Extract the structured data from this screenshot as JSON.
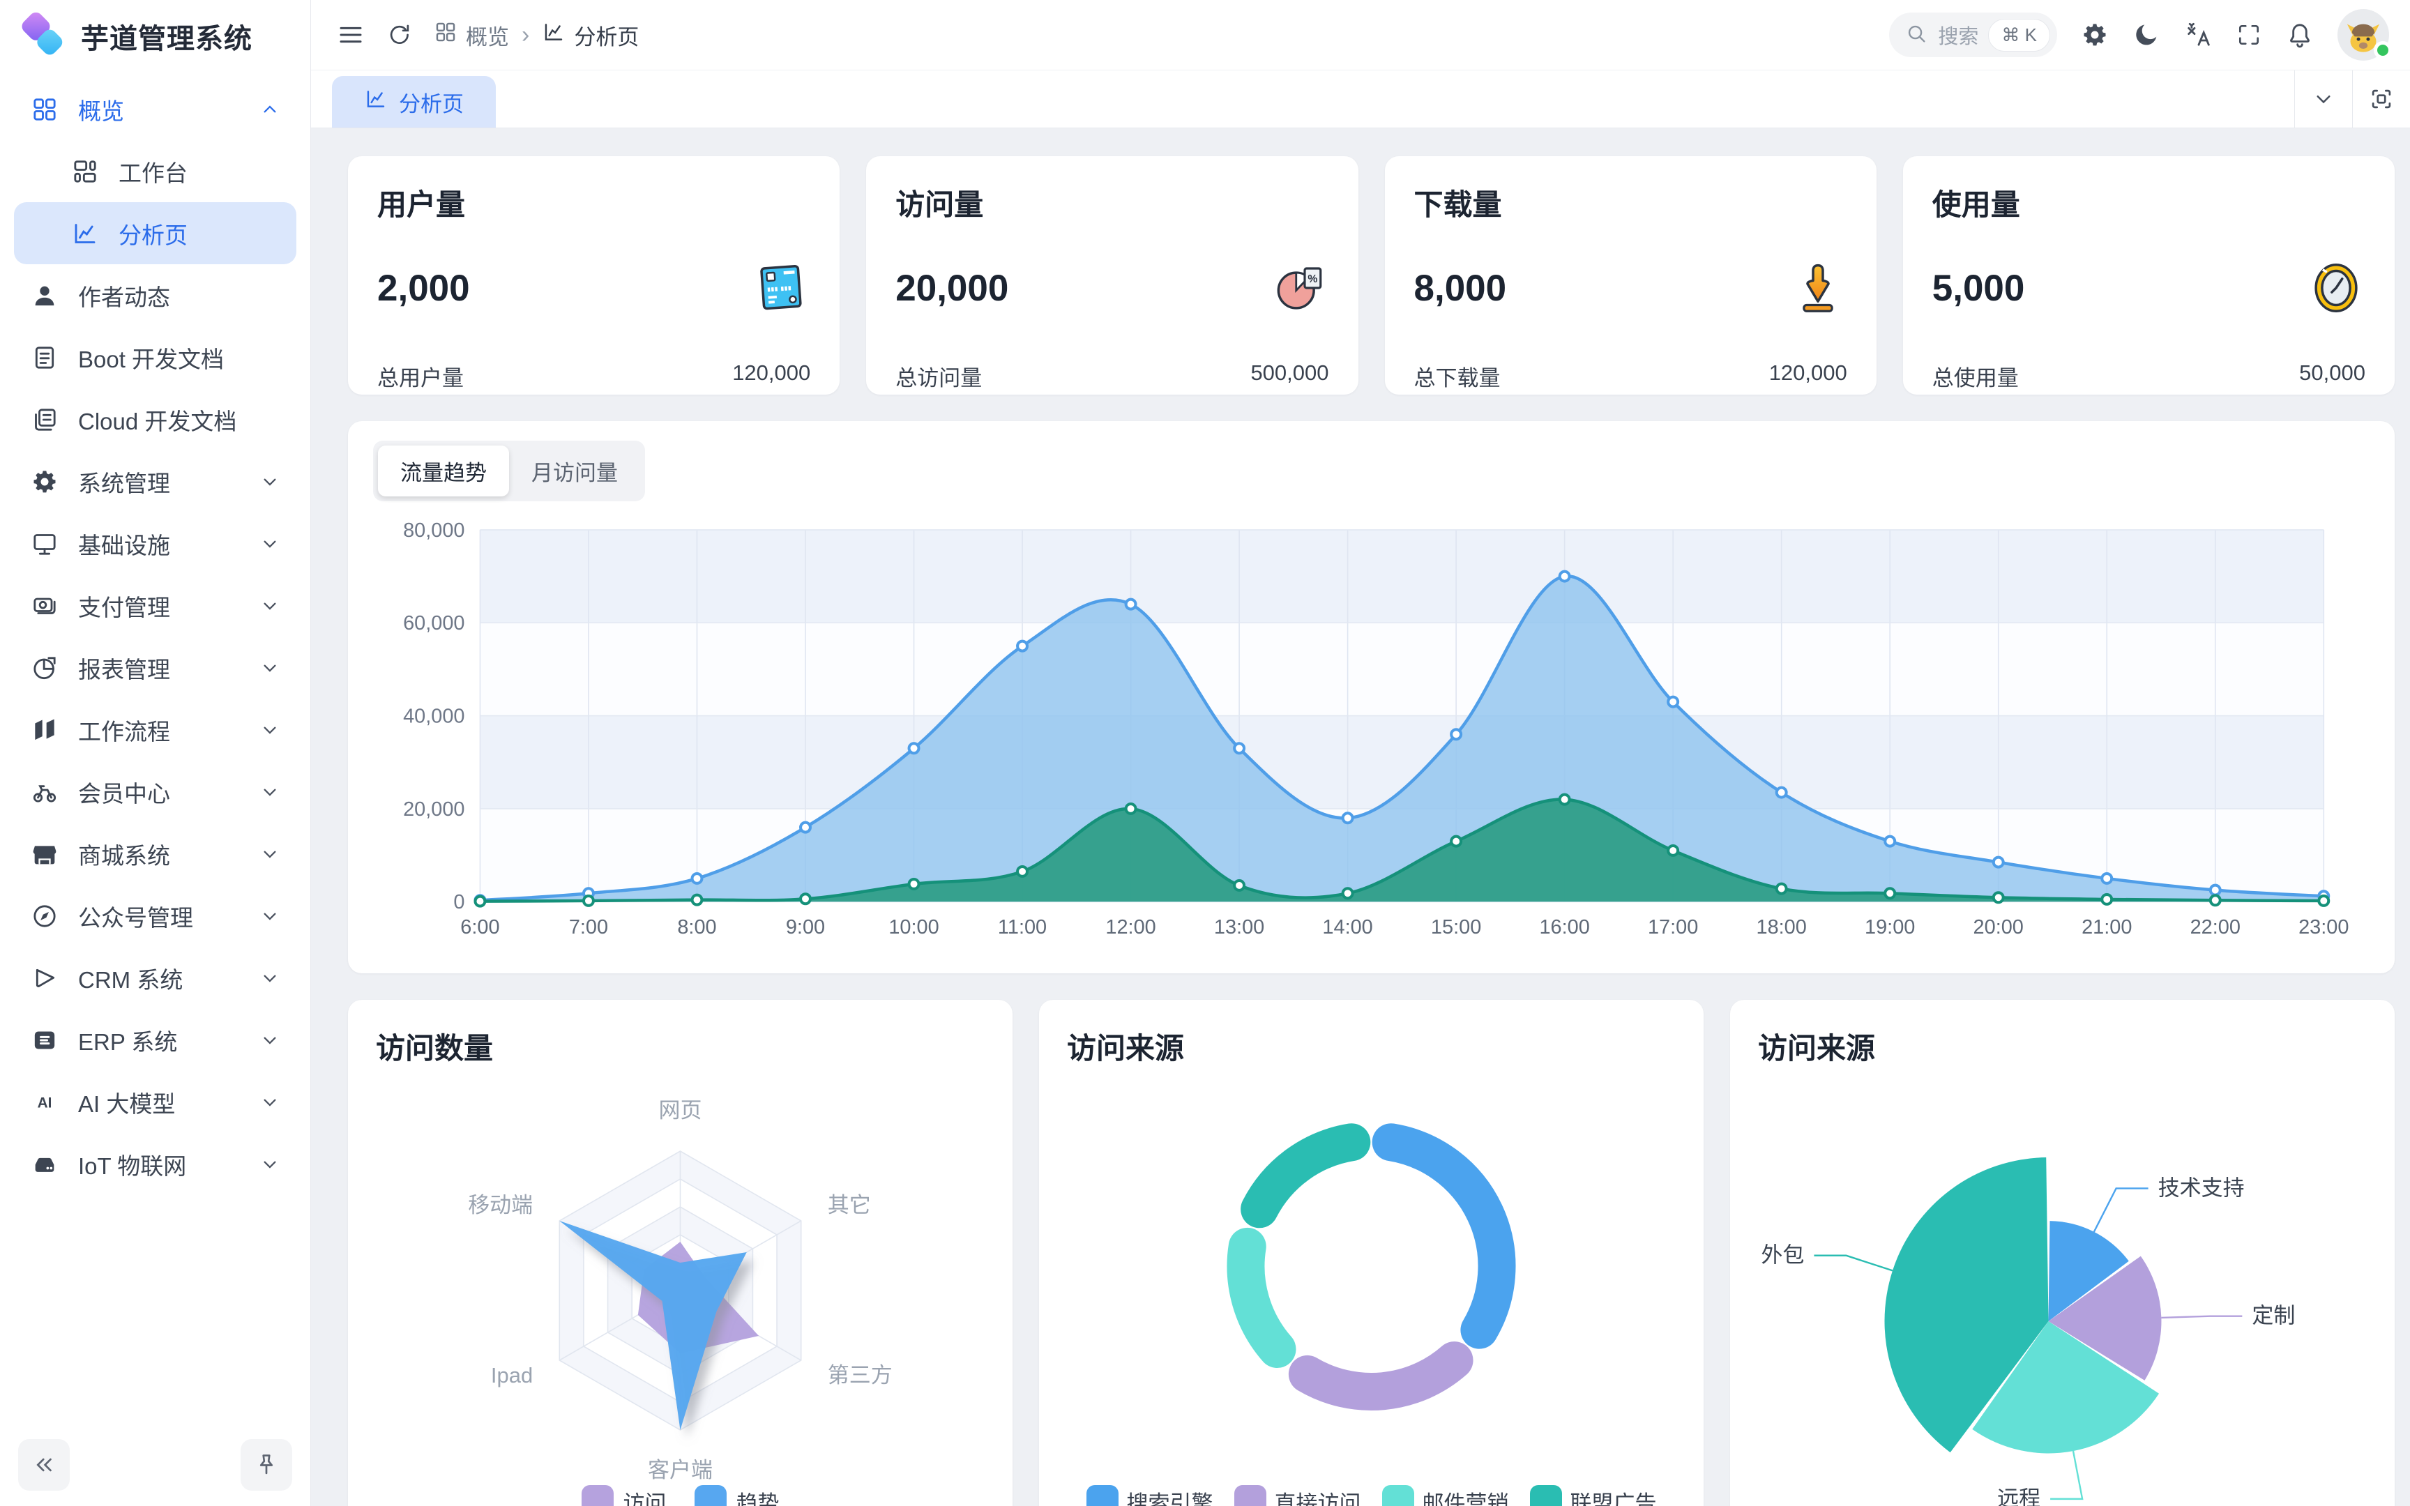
{
  "app": {
    "title": "芋道管理系统"
  },
  "sidebar": {
    "items": [
      {
        "label": "概览",
        "icon": "grid",
        "state": "open",
        "active": true,
        "children": [
          {
            "label": "工作台",
            "icon": "workbench",
            "active": false
          },
          {
            "label": "分析页",
            "icon": "chart",
            "active": true
          }
        ]
      },
      {
        "label": "作者动态",
        "icon": "user"
      },
      {
        "label": "Boot 开发文档",
        "icon": "doc"
      },
      {
        "label": "Cloud 开发文档",
        "icon": "docs"
      },
      {
        "label": "系统管理",
        "icon": "gear",
        "chevron": true
      },
      {
        "label": "基础设施",
        "icon": "monitor",
        "chevron": true
      },
      {
        "label": "支付管理",
        "icon": "pay",
        "chevron": true
      },
      {
        "label": "报表管理",
        "icon": "report",
        "chevron": true
      },
      {
        "label": "工作流程",
        "icon": "flow",
        "chevron": true
      },
      {
        "label": "会员中心",
        "icon": "member",
        "chevron": true
      },
      {
        "label": "商城系统",
        "icon": "shop",
        "chevron": true
      },
      {
        "label": "公众号管理",
        "icon": "compass",
        "chevron": true
      },
      {
        "label": "CRM 系统",
        "icon": "crm",
        "chevron": true
      },
      {
        "label": "ERP 系统",
        "icon": "erp",
        "chevron": true
      },
      {
        "label": "AI 大模型",
        "icon": "ai",
        "chevron": true
      },
      {
        "label": "IoT 物联网",
        "icon": "iot",
        "chevron": true
      }
    ],
    "footer_icons": [
      "collapse",
      "pin"
    ]
  },
  "header": {
    "breadcrumb": [
      {
        "label": "概览",
        "icon": "grid"
      },
      {
        "label": "分析页",
        "icon": "chart"
      }
    ],
    "search": {
      "placeholder": "搜索",
      "shortcut": "⌘ K"
    },
    "action_icons": [
      "settings",
      "moon",
      "translate",
      "fullscreen",
      "bell"
    ],
    "avatar": {
      "status_color": "#34c55e"
    }
  },
  "tabbar": {
    "tabs": [
      {
        "label": "分析页",
        "icon": "chart",
        "active": true
      }
    ]
  },
  "stats": {
    "cards": [
      {
        "title": "用户量",
        "value": "2,000",
        "icon": "bank-card",
        "footer_label": "总用户量",
        "footer_value": "120,000"
      },
      {
        "title": "访问量",
        "value": "20,000",
        "icon": "pie-percent",
        "footer_label": "总访问量",
        "footer_value": "500,000"
      },
      {
        "title": "下载量",
        "value": "8,000",
        "icon": "download",
        "footer_label": "总下载量",
        "footer_value": "120,000"
      },
      {
        "title": "使用量",
        "value": "5,000",
        "icon": "clock",
        "footer_label": "总使用量",
        "footer_value": "50,000"
      }
    ]
  },
  "trend": {
    "tabs": [
      "流量趋势",
      "月访问量"
    ],
    "active_tab": 0
  },
  "chart_data": [
    {
      "type": "area",
      "title": "流量趋势",
      "x": [
        "6:00",
        "7:00",
        "8:00",
        "9:00",
        "10:00",
        "11:00",
        "12:00",
        "13:00",
        "14:00",
        "15:00",
        "16:00",
        "17:00",
        "18:00",
        "19:00",
        "20:00",
        "21:00",
        "22:00",
        "23:00"
      ],
      "ylim": [
        0,
        80000
      ],
      "yticks": [
        "0",
        "20,000",
        "40,000",
        "60,000",
        "80,000"
      ],
      "grid": true,
      "series": [
        {
          "color": "#4f9ee8",
          "fill": "#8fc3ef",
          "fill_opacity": 0.8,
          "values": [
            300,
            1800,
            5000,
            16000,
            33000,
            55000,
            64000,
            33000,
            18000,
            36000,
            70000,
            43000,
            23500,
            13000,
            8500,
            5000,
            2500,
            1200
          ]
        },
        {
          "color": "#15917a",
          "fill": "#2f9e88",
          "fill_opacity": 0.95,
          "values": [
            100,
            200,
            400,
            600,
            3800,
            6500,
            20000,
            3500,
            1800,
            13000,
            22000,
            11000,
            2800,
            1800,
            900,
            500,
            300,
            200
          ]
        }
      ]
    },
    {
      "type": "radar",
      "title": "访问数量",
      "axes": [
        "网页",
        "其它",
        "第三方",
        "客户端",
        "Ipad",
        "移动端"
      ],
      "max": 100,
      "series": [
        {
          "name": "访问",
          "color": "#b5a2de",
          "values": [
            35,
            20,
            65,
            45,
            35,
            30
          ]
        },
        {
          "name": "趋势",
          "color": "#57a7f0",
          "values": [
            20,
            55,
            30,
            100,
            15,
            100
          ]
        }
      ],
      "legend_position": "bottom"
    },
    {
      "type": "pie",
      "variant": "doughnut",
      "title": "访问来源",
      "slices": [
        {
          "label": "搜索引擎",
          "value": 36,
          "color": "#4ba3ee"
        },
        {
          "label": "直接访问",
          "value": 25,
          "color": "#b3a0dc"
        },
        {
          "label": "邮件营销",
          "value": 19,
          "color": "#63e0d6"
        },
        {
          "label": "联盟广告",
          "value": 20,
          "color": "#2abdb2"
        }
      ],
      "legend_position": "bottom"
    },
    {
      "type": "pie",
      "variant": "rose",
      "title": "访问来源",
      "slices": [
        {
          "label": "技术支持",
          "value": 15,
          "color": "#4ba3ee"
        },
        {
          "label": "定制",
          "value": 19,
          "color": "#b3a0dc"
        },
        {
          "label": "远程",
          "value": 26,
          "color": "#63e0d6"
        },
        {
          "label": "外包",
          "value": 40,
          "color": "#2abdb2"
        }
      ]
    }
  ]
}
